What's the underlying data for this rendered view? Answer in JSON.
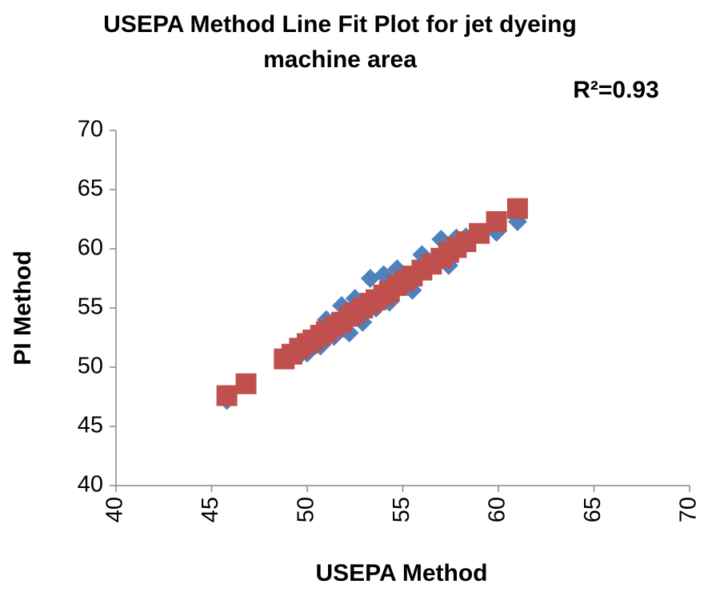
{
  "chart_data": {
    "type": "scatter",
    "title": [
      "USEPA Method Line Fit  Plot for jet dyeing",
      "machine area"
    ],
    "annotation": "R²=0.93",
    "x_label": "USEPA Method",
    "y_label": "PI Method",
    "xlim": [
      40,
      70
    ],
    "xticks": [
      40,
      45,
      50,
      55,
      60,
      65,
      70
    ],
    "ylim": [
      40,
      70
    ],
    "yticks": [
      40,
      45,
      50,
      55,
      60,
      65,
      70
    ],
    "grid": false,
    "x": [
      45.8,
      46.8,
      48.8,
      49.2,
      49.6,
      50.0,
      50.3,
      50.7,
      51.0,
      51.4,
      51.8,
      52.2,
      52.5,
      52.9,
      53.3,
      53.6,
      54.0,
      54.3,
      54.7,
      55.1,
      55.5,
      56.0,
      56.5,
      57.0,
      57.4,
      57.8,
      58.3,
      59.0,
      59.9,
      61.0
    ],
    "series": [
      {
        "marker": "diamond",
        "color": "#4f81bd",
        "values": [
          47.2,
          48.5,
          50.6,
          50.8,
          51.0,
          51.2,
          52.5,
          51.8,
          54.0,
          52.6,
          55.2,
          52.9,
          55.8,
          53.8,
          57.5,
          55.0,
          57.8,
          55.5,
          58.3,
          57.0,
          56.5,
          59.5,
          58.8,
          60.8,
          58.6,
          60.9,
          61.0,
          61.3,
          61.4,
          62.3
        ]
      },
      {
        "marker": "square",
        "color": "#c0504d",
        "values": [
          47.6,
          48.6,
          50.7,
          51.1,
          51.6,
          52.0,
          52.3,
          52.7,
          53.0,
          53.4,
          53.8,
          54.3,
          54.6,
          55.0,
          55.4,
          55.7,
          56.1,
          56.4,
          56.9,
          57.3,
          57.7,
          58.2,
          58.7,
          59.2,
          59.7,
          60.1,
          60.6,
          61.3,
          62.3,
          63.4
        ]
      }
    ]
  }
}
